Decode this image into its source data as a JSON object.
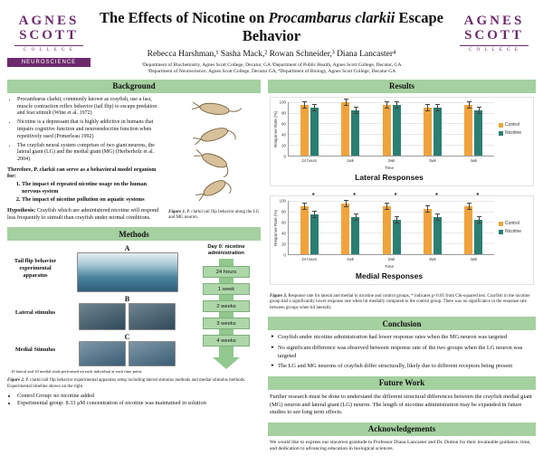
{
  "colors": {
    "section_header_green": "#a5d0a0",
    "brand_purple": "#6d2a6d",
    "control_bar": "#f0a33c",
    "nicotine_bar": "#2a7f72"
  },
  "logo": {
    "word1": "AGNES",
    "word2": "SCOTT",
    "college": "C O L L E G E",
    "neuroscience_banner": "NEUROSCIENCE"
  },
  "header": {
    "title_pre": "The Effects of Nicotine on ",
    "title_italic": "Procambarus clarkii",
    "title_post": " Escape Behavior",
    "authors": "Rebecca Harshman,¹ Sasha Mack,² Rowan Schneider,³ Diana Lancaster⁴",
    "affiliations": [
      "¹Department of Biochemistry, Agnes Scott College, Decatur, GA  ²Department of Public Health, Agnes Scott College, Decatur, GA",
      "³Department of Neuroscience, Agnes Scott College, Decatur GA,  ⁴Department of Biology, Agnes Scott College, Decatur GA"
    ]
  },
  "background": {
    "title": "Background",
    "bullets": [
      "Procambarus clarkii, commonly known as crayfish, use a fast, muscle contraction reflex behavior (tail flip) to escape predation and fear stimuli (Wine et al. 1972)",
      "Nicotine is a depressant that is highly addictive in humans that impairs cognitive function and neuroendocrine function when repetitively used (Pomerleau 1992)",
      "The crayfish neural system comprises of two giant neurons, the lateral giant (LG) and the medial giant (MG) (Herberholz et al. 2004)"
    ],
    "therefore": "Therefore, P. clarkii can serve as a behavioral model organism for:",
    "numbered": [
      "The impact of repeated nicotine usage on the human nervous system",
      "The impact of nicotine pollution on aquatic systems"
    ],
    "hypothesis_label": "Hypothesis:",
    "hypothesis_text": " Crayfish which are administered nicotine will respond less frequently to stimuli than crayfish under normal conditions.",
    "figure1_label": "Figure 1.",
    "figure1_text": " P. clarkii tail flip behavior along the LG and MG neuron."
  },
  "methods": {
    "title": "Methods",
    "label_a": "A",
    "caption_a": "Tail flip behavior experimental apparatus",
    "label_b": "B",
    "caption_b": "Lateral stimulus",
    "label_c": "C",
    "caption_c": "Medial Stimulus",
    "day0": "Day 0: nicotine administration",
    "timeline": [
      "24 hours",
      "1 week",
      "2 weeks",
      "3 weeks",
      "4 weeks"
    ],
    "trials_note": "10 lateral and 10 medial trials performed on each individual at each time point.",
    "figure2_label": "Figure 2.",
    "figure2_text": " P. clarkii tail flip behavior experimental apparatus setup including lateral stimulus methods and medial stimulus methods. Experimental timeline shown on the right",
    "bullets": [
      "Control Group: no nicotine added",
      "Experimental group: 8.33 μM concentration of nicotine was maintained in solution"
    ]
  },
  "results": {
    "title": "Results",
    "figure3_label": "Figure 3.",
    "figure3_text": " Response rate for lateral and medial in nicotine and control groups, * indicates p<0.05 from Chi-squared test. Crayfish in the nicotine group had a significantly lower response rate when hit medially compared to the control group. There was no significance in the response rate between groups when hit laterally."
  },
  "chart_data": [
    {
      "type": "bar",
      "title": "Lateral Responses",
      "categories": [
        "24 hours",
        "1wk",
        "2wk",
        "3wk",
        "4wk"
      ],
      "series": [
        {
          "name": "Control",
          "color": "#f0a33c",
          "values": [
            95,
            100,
            95,
            90,
            95
          ]
        },
        {
          "name": "Nicotine",
          "color": "#2a7f72",
          "values": [
            90,
            85,
            95,
            90,
            85
          ]
        }
      ],
      "xlabel": "Time",
      "ylabel": "Response Rate (%)",
      "ylim": [
        0,
        100
      ],
      "yticks": [
        0,
        20,
        40,
        60,
        80,
        100
      ],
      "sig": [
        false,
        false,
        false,
        false,
        false
      ],
      "legend_position": "right",
      "grid": true
    },
    {
      "type": "bar",
      "title": "Medial Responses",
      "categories": [
        "24 hours",
        "1wk",
        "2wk",
        "3wk",
        "4wk"
      ],
      "series": [
        {
          "name": "Control",
          "color": "#f0a33c",
          "values": [
            90,
            95,
            90,
            85,
            90
          ]
        },
        {
          "name": "Nicotine",
          "color": "#2a7f72",
          "values": [
            75,
            70,
            65,
            70,
            65
          ]
        }
      ],
      "xlabel": "Time",
      "ylabel": "Response Rate (%)",
      "ylim": [
        0,
        100
      ],
      "yticks": [
        0,
        20,
        40,
        60,
        80,
        100
      ],
      "sig": [
        true,
        true,
        true,
        true,
        true
      ],
      "legend_position": "right",
      "grid": true
    }
  ],
  "conclusion": {
    "title": "Conclusion",
    "bullets": [
      "Crayfish under nicotine administration had lower response rates when the MG neuron was targeted",
      "No significant difference was observed between response rate of the two groups when the LG neuron was targeted",
      "The LG and MG neurons of crayfish differ structurally, likely due to different receptors being present"
    ]
  },
  "future_work": {
    "title": "Future Work",
    "text": "Further research must be done to understand the different structural differences between the crayfish medial giant (MG) neuron and lateral giant (LG) neuron. The length of nicotine administration may be expanded in future studies to see long term effects."
  },
  "acknowledgements": {
    "title": "Acknowledgements",
    "text": "We would like to express our sincerest gratitude to Professor Diana Lancaster and Dr. Dutton for their invaluable guidance, time, and dedication to advancing education in biological sciences."
  }
}
